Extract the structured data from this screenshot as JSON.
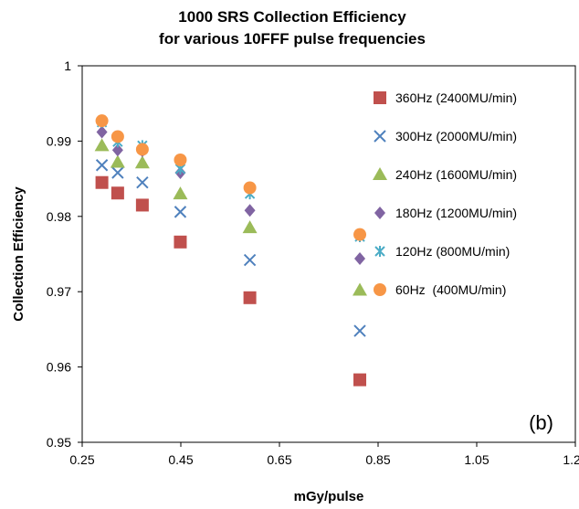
{
  "chart_data": {
    "type": "scatter",
    "title": [
      "1000 SRS Collection Efficiency",
      "for various 10FFF pulse frequencies"
    ],
    "xlabel": "mGy/pulse",
    "ylabel": "Collection Efficiency",
    "xlim": [
      0.25,
      1.25
    ],
    "ylim": [
      0.95,
      1.0
    ],
    "xticks": [
      0.25,
      0.45,
      0.65,
      0.85,
      1.05,
      1.25
    ],
    "xtick_labels": [
      "0.25",
      "0.45",
      "0.65",
      "0.85",
      "1.05",
      "1.25"
    ],
    "yticks": [
      0.95,
      0.96,
      0.97,
      0.98,
      0.99,
      1.0
    ],
    "ytick_labels": [
      "0.95",
      "0.96",
      "0.97",
      "0.98",
      "0.99",
      "1"
    ],
    "grid": false,
    "legend_position": "right",
    "annotation": "(b)",
    "series": [
      {
        "name": "360Hz (2400MU/min)",
        "marker": "square",
        "color": "#c0504d",
        "x": [
          0.29,
          0.322,
          0.372,
          0.449,
          0.59,
          0.813
        ],
        "y": [
          0.9845,
          0.9831,
          0.9815,
          0.9766,
          0.9692,
          0.9583
        ]
      },
      {
        "name": "300Hz (2000MU/min)",
        "marker": "x",
        "color": "#4f81bd",
        "x": [
          0.29,
          0.322,
          0.372,
          0.449,
          0.59,
          0.813
        ],
        "y": [
          0.9868,
          0.9858,
          0.9845,
          0.9806,
          0.9742,
          0.9648
        ]
      },
      {
        "name": "240Hz (1600MU/min)",
        "marker": "triangle",
        "color": "#9bbb59",
        "x": [
          0.29,
          0.322,
          0.372,
          0.449,
          0.59,
          0.813
        ],
        "y": [
          0.9894,
          0.9872,
          0.9871,
          0.983,
          0.9785,
          0.9702
        ]
      },
      {
        "name": "180Hz (1200MU/min)",
        "marker": "diamond",
        "color": "#8064a2",
        "x": [
          0.29,
          0.322,
          0.372,
          0.449,
          0.59,
          0.813
        ],
        "y": [
          0.9912,
          0.9888,
          0.9887,
          0.9858,
          0.9808,
          0.9744
        ]
      },
      {
        "name": "120Hz (800MU/min)",
        "marker": "star",
        "color": "#4bacc6",
        "x": [
          0.29,
          0.322,
          0.372,
          0.449,
          0.59,
          0.813
        ],
        "y": [
          0.9925,
          0.9899,
          0.9894,
          0.9863,
          0.983,
          0.9773
        ]
      },
      {
        "name": "60Hz  (400MU/min)",
        "marker": "circle",
        "color": "#f79646",
        "x": [
          0.29,
          0.322,
          0.372,
          0.449,
          0.59,
          0.813
        ],
        "y": [
          0.9927,
          0.9906,
          0.9889,
          0.9875,
          0.9838,
          0.9776
        ]
      }
    ]
  }
}
